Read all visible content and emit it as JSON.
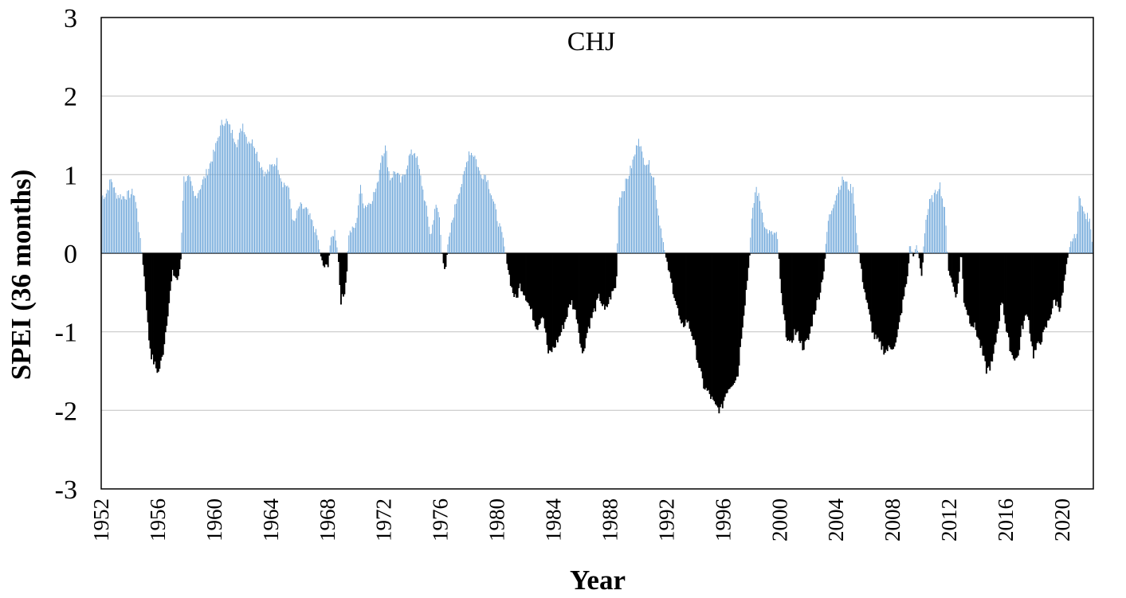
{
  "chart_data": {
    "type": "bar",
    "title": "CHJ",
    "xlabel": "Year",
    "ylabel": "SPEI (36 months)",
    "xlim": [
      1952,
      2022.2
    ],
    "ylim": [
      -3,
      3
    ],
    "y_ticks": [
      "3",
      "2",
      "1",
      "0",
      "-1",
      "-2",
      "-3"
    ],
    "y_tick_values": [
      3,
      2,
      1,
      0,
      -1,
      -2,
      -3
    ],
    "x_ticks": [
      "1952",
      "1956",
      "1960",
      "1964",
      "1968",
      "1972",
      "1976",
      "1980",
      "1984",
      "1988",
      "1992",
      "1996",
      "2000",
      "2004",
      "2008",
      "2012",
      "2016",
      "2020"
    ],
    "x_tick_values": [
      1952,
      1956,
      1960,
      1964,
      1968,
      1972,
      1976,
      1980,
      1984,
      1988,
      1992,
      1996,
      2000,
      2004,
      2008,
      2012,
      2016,
      2020
    ],
    "grid": "horizontal",
    "colors": {
      "positive": "#5b9bd5",
      "negative": "#000000"
    },
    "frequency": "monthly",
    "series": [
      {
        "profile": [
          [
            1952.0,
            0.72
          ],
          [
            1952.3,
            0.75
          ],
          [
            1952.7,
            0.95
          ],
          [
            1953.0,
            0.75
          ],
          [
            1953.5,
            0.72
          ],
          [
            1954.0,
            0.75
          ],
          [
            1954.3,
            0.78
          ],
          [
            1954.5,
            0.55
          ],
          [
            1954.7,
            0.25
          ],
          [
            1954.9,
            -0.1
          ],
          [
            1955.1,
            -0.5
          ],
          [
            1955.3,
            -1.05
          ],
          [
            1955.5,
            -1.3
          ],
          [
            1955.8,
            -1.45
          ],
          [
            1956.0,
            -1.52
          ],
          [
            1956.3,
            -1.3
          ],
          [
            1956.5,
            -1.0
          ],
          [
            1956.8,
            -0.55
          ],
          [
            1957.0,
            -0.25
          ],
          [
            1957.2,
            -0.3
          ],
          [
            1957.4,
            -0.35
          ],
          [
            1957.6,
            -0.05
          ],
          [
            1957.8,
            0.95
          ],
          [
            1958.2,
            0.95
          ],
          [
            1958.6,
            0.7
          ],
          [
            1959.0,
            0.85
          ],
          [
            1959.5,
            1.05
          ],
          [
            1960.0,
            1.3
          ],
          [
            1960.5,
            1.65
          ],
          [
            1960.8,
            1.7
          ],
          [
            1961.2,
            1.55
          ],
          [
            1961.6,
            1.4
          ],
          [
            1962.0,
            1.65
          ],
          [
            1962.3,
            1.45
          ],
          [
            1962.8,
            1.4
          ],
          [
            1963.2,
            1.15
          ],
          [
            1963.6,
            1.0
          ],
          [
            1964.0,
            1.1
          ],
          [
            1964.4,
            1.18
          ],
          [
            1964.8,
            0.9
          ],
          [
            1965.2,
            0.85
          ],
          [
            1965.6,
            0.35
          ],
          [
            1966.0,
            0.6
          ],
          [
            1966.5,
            0.55
          ],
          [
            1967.0,
            0.35
          ],
          [
            1967.3,
            0.2
          ],
          [
            1967.5,
            -0.05
          ],
          [
            1967.7,
            -0.18
          ],
          [
            1968.0,
            -0.15
          ],
          [
            1968.2,
            0.15
          ],
          [
            1968.5,
            0.28
          ],
          [
            1968.7,
            0.05
          ],
          [
            1968.9,
            -0.6
          ],
          [
            1969.1,
            -0.55
          ],
          [
            1969.3,
            -0.3
          ],
          [
            1969.5,
            0.25
          ],
          [
            1970.0,
            0.35
          ],
          [
            1970.3,
            0.85
          ],
          [
            1970.6,
            0.6
          ],
          [
            1971.0,
            0.65
          ],
          [
            1971.5,
            0.85
          ],
          [
            1971.8,
            1.25
          ],
          [
            1972.1,
            1.35
          ],
          [
            1972.4,
            0.95
          ],
          [
            1972.8,
            1.05
          ],
          [
            1973.2,
            0.9
          ],
          [
            1973.5,
            1.05
          ],
          [
            1973.8,
            1.25
          ],
          [
            1974.2,
            1.3
          ],
          [
            1974.6,
            0.95
          ],
          [
            1975.0,
            0.55
          ],
          [
            1975.3,
            0.2
          ],
          [
            1975.6,
            0.6
          ],
          [
            1975.9,
            0.5
          ],
          [
            1976.1,
            -0.05
          ],
          [
            1976.3,
            -0.22
          ],
          [
            1976.5,
            0.1
          ],
          [
            1976.8,
            0.4
          ],
          [
            1977.2,
            0.75
          ],
          [
            1977.6,
            0.95
          ],
          [
            1978.0,
            1.3
          ],
          [
            1978.4,
            1.25
          ],
          [
            1978.8,
            1.0
          ],
          [
            1979.2,
            1.0
          ],
          [
            1979.6,
            0.75
          ],
          [
            1980.0,
            0.45
          ],
          [
            1980.4,
            0.2
          ],
          [
            1980.7,
            -0.15
          ],
          [
            1981.0,
            -0.45
          ],
          [
            1981.3,
            -0.6
          ],
          [
            1981.6,
            -0.4
          ],
          [
            1982.0,
            -0.55
          ],
          [
            1982.4,
            -0.75
          ],
          [
            1982.8,
            -0.95
          ],
          [
            1983.2,
            -0.75
          ],
          [
            1983.6,
            -1.3
          ],
          [
            1984.0,
            -1.2
          ],
          [
            1984.4,
            -1.05
          ],
          [
            1984.8,
            -0.85
          ],
          [
            1985.2,
            -0.6
          ],
          [
            1985.6,
            -0.8
          ],
          [
            1986.0,
            -1.3
          ],
          [
            1986.4,
            -0.95
          ],
          [
            1986.8,
            -0.75
          ],
          [
            1987.2,
            -0.55
          ],
          [
            1987.6,
            -0.75
          ],
          [
            1988.0,
            -0.55
          ],
          [
            1988.4,
            -0.4
          ],
          [
            1988.6,
            0.7
          ],
          [
            1989.0,
            0.85
          ],
          [
            1989.4,
            1.05
          ],
          [
            1989.8,
            1.3
          ],
          [
            1990.0,
            1.5
          ],
          [
            1990.3,
            1.2
          ],
          [
            1990.7,
            1.15
          ],
          [
            1991.1,
            0.95
          ],
          [
            1991.4,
            0.5
          ],
          [
            1991.7,
            0.2
          ],
          [
            1991.9,
            -0.05
          ],
          [
            1992.2,
            -0.3
          ],
          [
            1992.6,
            -0.6
          ],
          [
            1993.0,
            -0.95
          ],
          [
            1993.4,
            -0.85
          ],
          [
            1993.8,
            -1.05
          ],
          [
            1994.2,
            -1.4
          ],
          [
            1994.6,
            -1.7
          ],
          [
            1995.0,
            -1.8
          ],
          [
            1995.4,
            -1.95
          ],
          [
            1995.8,
            -2.0
          ],
          [
            1996.2,
            -1.75
          ],
          [
            1996.6,
            -1.65
          ],
          [
            1997.0,
            -1.55
          ],
          [
            1997.3,
            -0.95
          ],
          [
            1997.6,
            -0.45
          ],
          [
            1997.8,
            -0.1
          ],
          [
            1998.0,
            0.4
          ],
          [
            1998.3,
            0.85
          ],
          [
            1998.6,
            0.65
          ],
          [
            1999.0,
            0.3
          ],
          [
            1999.4,
            0.25
          ],
          [
            1999.8,
            0.25
          ],
          [
            2000.1,
            -0.6
          ],
          [
            2000.4,
            -1.0
          ],
          [
            2000.7,
            -1.2
          ],
          [
            2001.0,
            -1.0
          ],
          [
            2001.3,
            -1.05
          ],
          [
            2001.6,
            -1.2
          ],
          [
            2002.0,
            -1.1
          ],
          [
            2002.4,
            -0.75
          ],
          [
            2002.8,
            -0.5
          ],
          [
            2003.1,
            -0.2
          ],
          [
            2003.4,
            0.4
          ],
          [
            2003.8,
            0.65
          ],
          [
            2004.2,
            0.85
          ],
          [
            2004.5,
            0.95
          ],
          [
            2004.8,
            0.85
          ],
          [
            2005.2,
            0.8
          ],
          [
            2005.5,
            0.1
          ],
          [
            2005.8,
            -0.3
          ],
          [
            2006.2,
            -0.7
          ],
          [
            2006.6,
            -1.05
          ],
          [
            2007.0,
            -1.15
          ],
          [
            2007.4,
            -1.25
          ],
          [
            2007.8,
            -1.2
          ],
          [
            2008.2,
            -1.15
          ],
          [
            2008.6,
            -0.7
          ],
          [
            2009.0,
            -0.3
          ],
          [
            2009.2,
            0.15
          ],
          [
            2009.4,
            -0.05
          ],
          [
            2009.7,
            0.1
          ],
          [
            2010.0,
            -0.3
          ],
          [
            2010.3,
            0.4
          ],
          [
            2010.6,
            0.65
          ],
          [
            2011.0,
            0.75
          ],
          [
            2011.3,
            0.9
          ],
          [
            2011.7,
            0.5
          ],
          [
            2011.9,
            -0.2
          ],
          [
            2012.2,
            -0.4
          ],
          [
            2012.5,
            -0.55
          ],
          [
            2012.8,
            0.05
          ],
          [
            2013.0,
            -0.6
          ],
          [
            2013.4,
            -0.85
          ],
          [
            2013.8,
            -0.95
          ],
          [
            2014.2,
            -1.2
          ],
          [
            2014.6,
            -1.5
          ],
          [
            2015.0,
            -1.4
          ],
          [
            2015.4,
            -0.95
          ],
          [
            2015.7,
            -0.55
          ],
          [
            2016.0,
            -1.0
          ],
          [
            2016.4,
            -1.3
          ],
          [
            2016.8,
            -1.35
          ],
          [
            2017.1,
            -0.95
          ],
          [
            2017.5,
            -0.75
          ],
          [
            2017.9,
            -1.3
          ],
          [
            2018.3,
            -1.15
          ],
          [
            2018.6,
            -1.05
          ],
          [
            2019.0,
            -0.85
          ],
          [
            2019.4,
            -0.6
          ],
          [
            2019.8,
            -0.7
          ],
          [
            2020.0,
            -0.5
          ],
          [
            2020.3,
            -0.1
          ],
          [
            2020.6,
            0.15
          ],
          [
            2021.0,
            0.25
          ],
          [
            2021.2,
            0.8
          ],
          [
            2021.5,
            0.5
          ],
          [
            2021.8,
            0.45
          ],
          [
            2022.0,
            0.35
          ],
          [
            2022.2,
            -0.1
          ]
        ]
      }
    ]
  }
}
